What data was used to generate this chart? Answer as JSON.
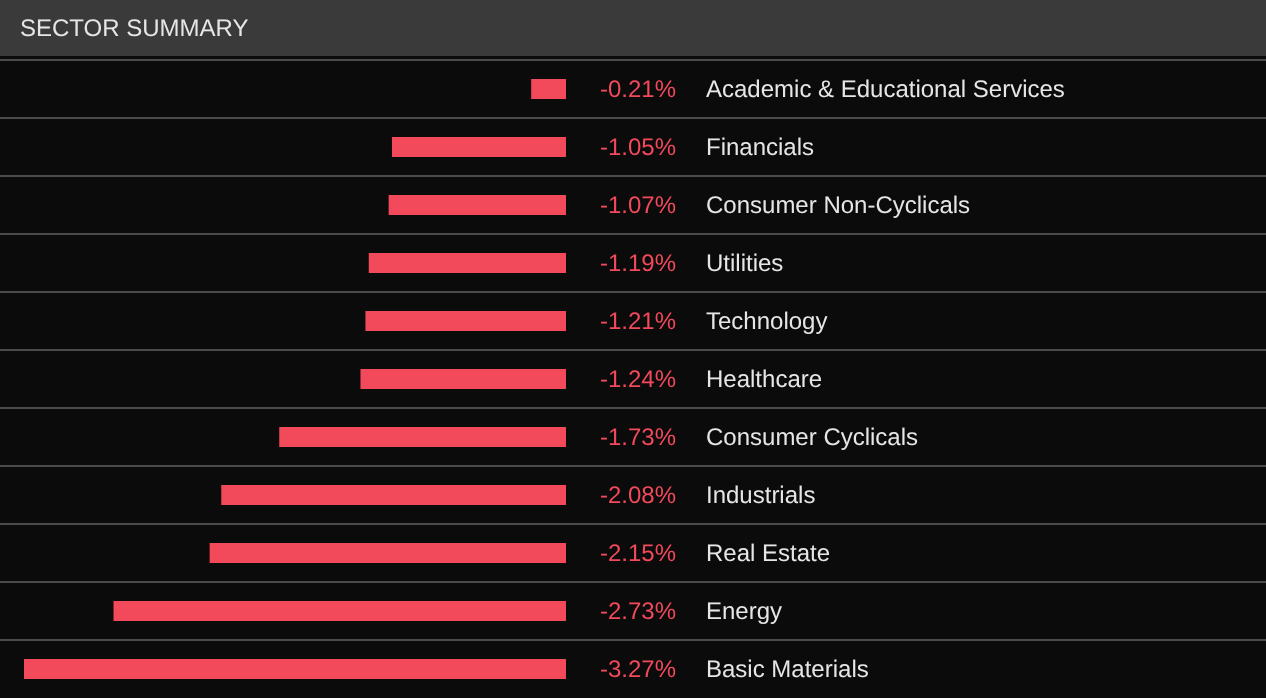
{
  "chart_data": {
    "type": "bar",
    "orientation": "horizontal",
    "title": "SECTOR SUMMARY",
    "categories": [
      "Academic & Educational Services",
      "Financials",
      "Consumer Non-Cyclicals",
      "Utilities",
      "Technology",
      "Healthcare",
      "Consumer Cyclicals",
      "Industrials",
      "Real Estate",
      "Energy",
      "Basic Materials"
    ],
    "values": [
      -0.21,
      -1.05,
      -1.07,
      -1.19,
      -1.21,
      -1.24,
      -1.73,
      -2.08,
      -2.15,
      -2.73,
      -3.27
    ],
    "value_labels": [
      "-0.21%",
      "-1.05%",
      "-1.07%",
      "-1.19%",
      "-1.21%",
      "-1.24%",
      "-1.73%",
      "-2.08%",
      "-2.15%",
      "-2.73%",
      "-3.27%"
    ],
    "color": "#f2495b",
    "grid": "y"
  }
}
